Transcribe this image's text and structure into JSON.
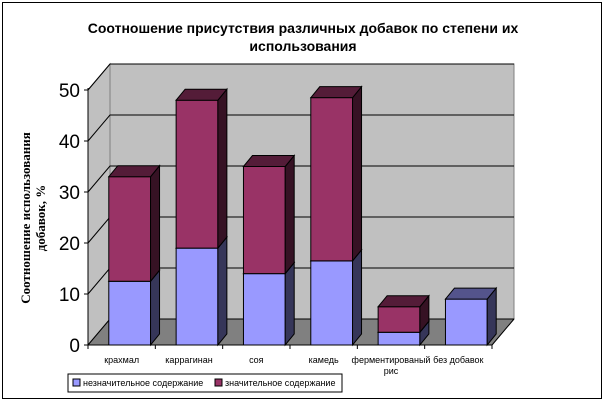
{
  "chart_data": {
    "type": "bar",
    "stacked": true,
    "three_d": true,
    "title_lines": [
      "Соотношение присутствия различных добавок по степени их",
      "использования"
    ],
    "xlabel": "",
    "ylabel_lines": [
      "Соотношение использования",
      "добавок, %"
    ],
    "ylim": [
      0,
      50
    ],
    "yticks": [
      0,
      10,
      20,
      30,
      40,
      50
    ],
    "grid": true,
    "legend_position": "bottom-left",
    "categories": [
      [
        "крахмал"
      ],
      [
        "каррагинан"
      ],
      [
        "соя"
      ],
      [
        "камедь"
      ],
      [
        "ферментированый",
        "рис"
      ],
      [
        "без добавок"
      ]
    ],
    "series": [
      {
        "name": "незначительное содержание",
        "values": [
          12.5,
          19,
          14,
          16.5,
          2.5,
          9
        ],
        "color": "#9999ff"
      },
      {
        "name": "значительное содержание",
        "values": [
          20.5,
          29,
          21,
          32,
          5,
          0
        ],
        "color": "#993366"
      }
    ],
    "wall_color": "#c0c0c0",
    "floor_color": "#808080"
  }
}
